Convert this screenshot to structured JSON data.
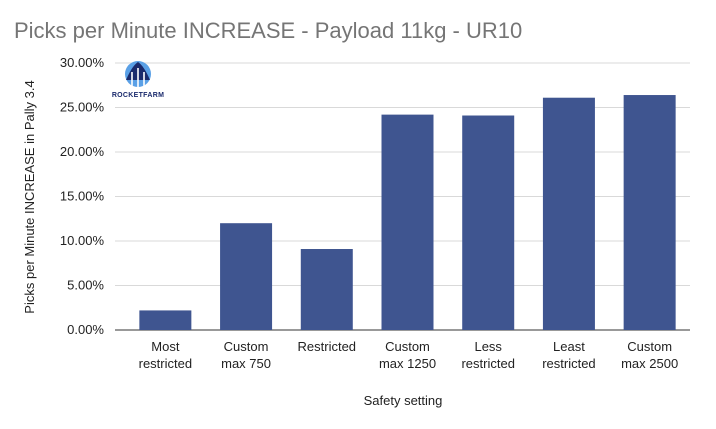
{
  "chart_data": {
    "type": "bar",
    "title": "Picks per Minute INCREASE - Payload 11kg - UR10",
    "xlabel": "Safety setting",
    "ylabel": "Picks per Minute INCREASE in Pally 3.4",
    "categories": [
      [
        "Most",
        "restricted"
      ],
      [
        "Custom",
        "max 750"
      ],
      [
        "Restricted"
      ],
      [
        "Custom",
        "max 1250"
      ],
      [
        "Less",
        "restricted"
      ],
      [
        "Least",
        "restricted"
      ],
      [
        "Custom",
        "max 2500"
      ]
    ],
    "values": [
      2.2,
      12.0,
      9.1,
      24.2,
      24.1,
      26.1,
      26.4
    ],
    "ylim": [
      0,
      30
    ],
    "yticks": [
      "0.00%",
      "5.00%",
      "10.00%",
      "15.00%",
      "20.00%",
      "25.00%",
      "30.00%"
    ],
    "ytick_values": [
      0,
      5,
      10,
      15,
      20,
      25,
      30
    ],
    "bar_color": "#3f5590",
    "grid": true,
    "legend": "none"
  },
  "logo": {
    "text": "ROCKETFARM",
    "color": "#1a2a6c",
    "accent": "#5aa0e6"
  }
}
